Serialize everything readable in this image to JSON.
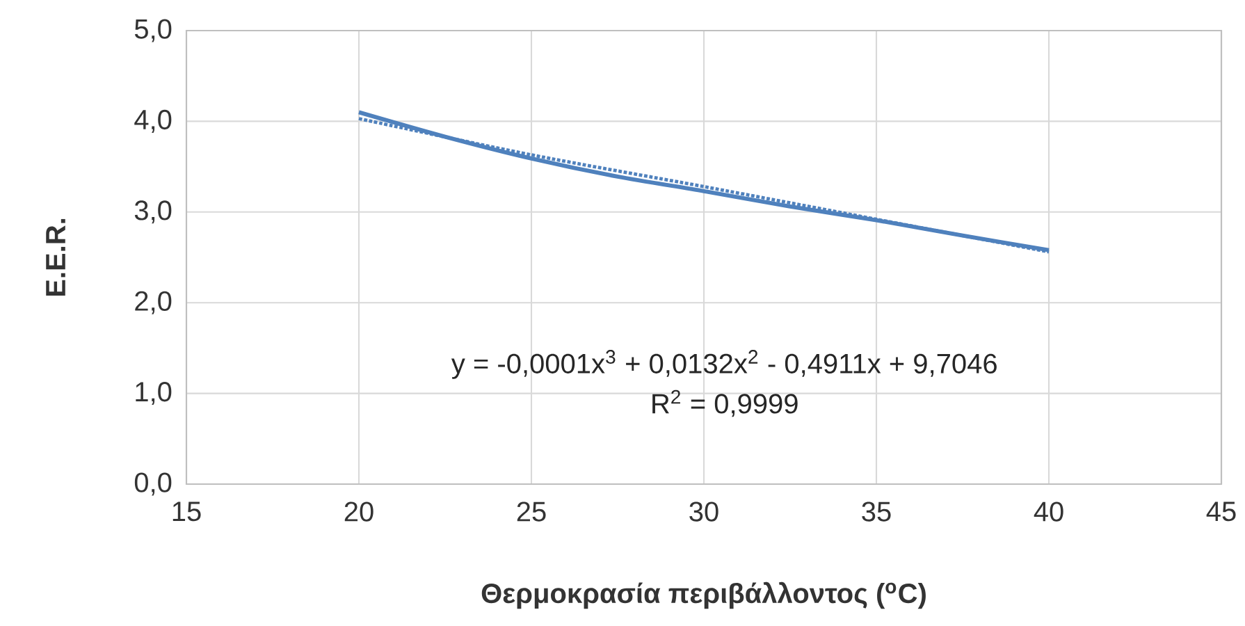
{
  "chart_data": {
    "type": "line",
    "xlabel": "Θερμοκρασία περιβάλλοντος ($^{o}$C)",
    "ylabel": "E.E.R.",
    "series": [
      {
        "color": "#4f81bd",
        "x": [
          20,
          22.5,
          25,
          27.5,
          30,
          32.5,
          35,
          37.5,
          40
        ],
        "values": [
          4.1,
          3.83,
          3.59,
          3.39,
          3.23,
          3.06,
          2.91,
          2.74,
          2.58
        ],
        "line_style": "solid"
      },
      {
        "color": "#4f81bd",
        "x": [
          20,
          25,
          30,
          35,
          40
        ],
        "values": [
          4.03,
          3.63,
          3.28,
          2.92,
          2.56
        ],
        "line_style": "dotted"
      }
    ],
    "xlim": [
      15,
      45
    ],
    "xticks": [
      15,
      20,
      25,
      30,
      35,
      40,
      45
    ],
    "ylim": [
      0,
      5
    ],
    "yticks": [
      {
        "value": 0,
        "label": "0,0"
      },
      {
        "value": 1,
        "label": "1,0"
      },
      {
        "value": 2,
        "label": "2,0"
      },
      {
        "value": 3,
        "label": "3,0"
      },
      {
        "value": 4,
        "label": "4,0"
      },
      {
        "value": 5,
        "label": "5,0"
      }
    ],
    "grid": true,
    "annotations": [
      "y = -0,0001x$^{3}$ + 0,0132x$^{2}$ - 0,4911x + 9,7046",
      "R$^{2}$ = 0,9999"
    ]
  }
}
